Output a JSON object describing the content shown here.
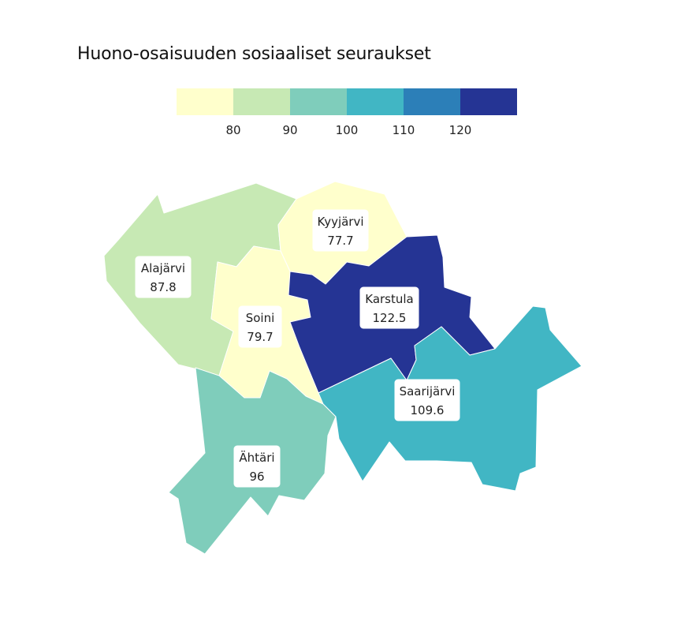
{
  "title": "Huono-osaisuuden sosiaaliset seuraukset",
  "legend": {
    "colors": [
      "#ffffcc",
      "#c7e9b4",
      "#7fcdbb",
      "#41b6c4",
      "#2c7fb8",
      "#253494"
    ],
    "ticks": [
      "80",
      "90",
      "100",
      "110",
      "120"
    ]
  },
  "regions": [
    {
      "key": "alajarvi",
      "name": "Alajärvi",
      "value_label": "87.8",
      "color": "#c7e9b4"
    },
    {
      "key": "kyyjarvi",
      "name": "Kyyjärvi",
      "value_label": "77.7",
      "color": "#ffffcc"
    },
    {
      "key": "soini",
      "name": "Soini",
      "value_label": "79.7",
      "color": "#ffffcc"
    },
    {
      "key": "karstula",
      "name": "Karstula",
      "value_label": "122.5",
      "color": "#253494"
    },
    {
      "key": "saarijarvi",
      "name": "Saarijärvi",
      "value_label": "109.6",
      "color": "#41b6c4"
    },
    {
      "key": "ahtari",
      "name": "Ähtäri",
      "value_label": "96",
      "color": "#7fcdbb"
    }
  ]
}
